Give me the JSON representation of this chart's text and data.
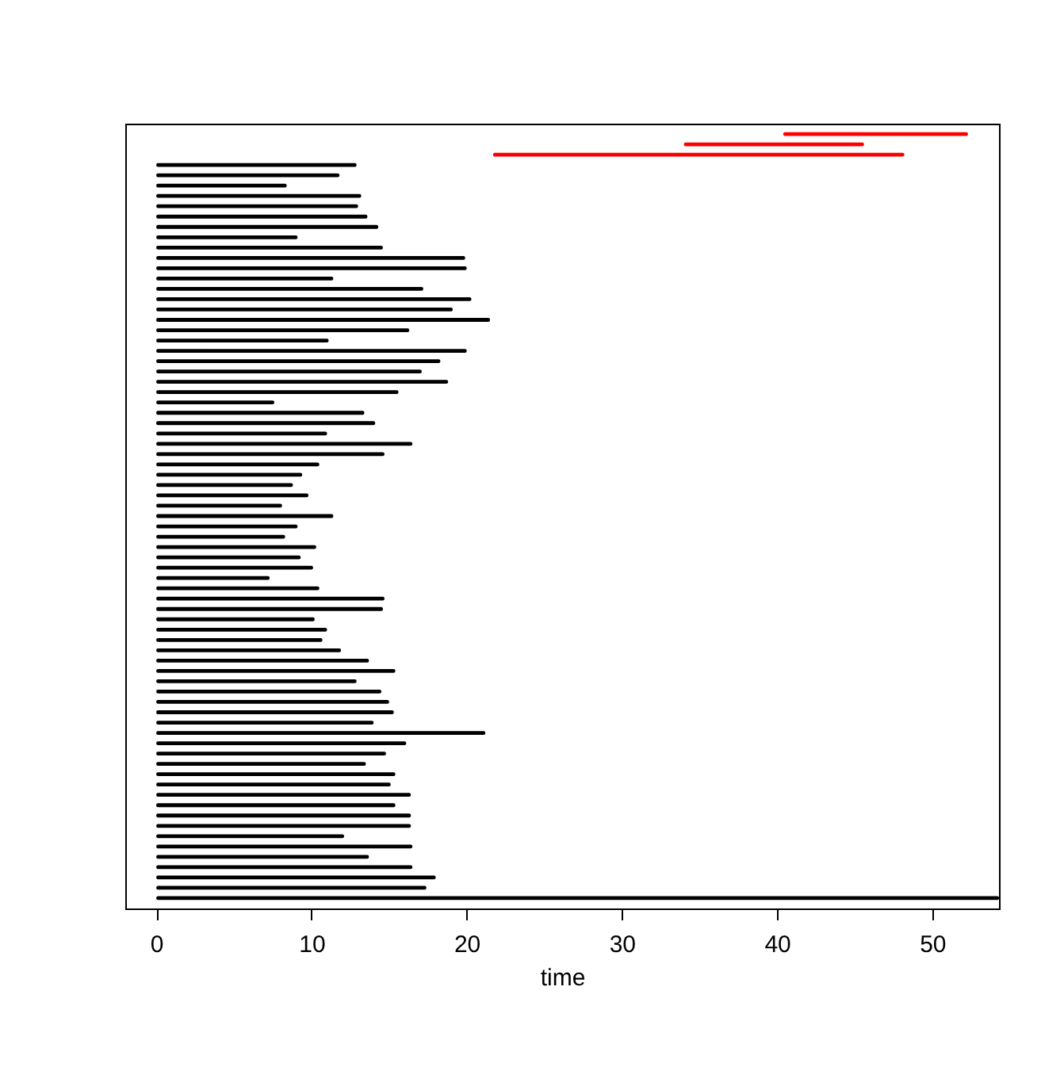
{
  "chart_data": {
    "type": "bar",
    "orientation": "horizontal",
    "xlabel": "time",
    "categories": [
      null,
      null,
      null,
      null,
      null,
      null,
      null,
      null,
      null,
      null,
      null,
      null,
      null,
      null,
      null,
      null,
      null,
      null,
      null,
      null,
      null,
      null,
      null,
      null,
      null,
      null,
      null,
      null,
      null,
      null,
      null,
      null,
      null,
      null,
      null,
      null,
      null,
      null,
      null,
      null,
      null,
      null,
      null,
      null,
      null,
      null,
      null,
      null,
      null,
      null,
      null,
      null,
      null,
      null,
      null,
      null,
      null,
      null,
      null,
      null,
      null,
      null,
      null,
      null,
      null,
      null,
      null,
      null,
      null,
      null,
      null,
      null,
      null,
      null,
      null
    ],
    "base": [
      40.4,
      34.0,
      21.7,
      0,
      0,
      0,
      0,
      0,
      0,
      0,
      0,
      0,
      0,
      0,
      0,
      0,
      0,
      0,
      0,
      0,
      0,
      0,
      0,
      0,
      0,
      0,
      0,
      0,
      0,
      0,
      0,
      0,
      0,
      0,
      0,
      0,
      0,
      0,
      0,
      0,
      0,
      0,
      0,
      0,
      0,
      0,
      0,
      0,
      0,
      0,
      0,
      0,
      0,
      0,
      0,
      0,
      0,
      0,
      0,
      0,
      0,
      0,
      0,
      0,
      0,
      0,
      0,
      0,
      0,
      0,
      0,
      0,
      0,
      0,
      0
    ],
    "values": [
      11.9,
      11.6,
      26.5,
      12.9,
      11.8,
      8.4,
      13.2,
      13.0,
      13.6,
      14.3,
      9.1,
      14.6,
      19.9,
      20.0,
      11.4,
      17.2,
      20.3,
      19.1,
      21.5,
      16.3,
      11.1,
      20.0,
      18.3,
      17.1,
      18.8,
      15.6,
      7.6,
      13.4,
      14.1,
      11.0,
      16.5,
      14.7,
      10.5,
      9.4,
      8.8,
      9.8,
      8.1,
      11.4,
      9.1,
      8.3,
      10.3,
      9.3,
      10.1,
      7.3,
      10.5,
      14.7,
      14.6,
      10.2,
      11.0,
      10.7,
      11.9,
      13.7,
      15.4,
      12.9,
      14.5,
      15.0,
      15.3,
      14.0,
      21.2,
      16.1,
      14.8,
      13.5,
      15.4,
      15.1,
      16.4,
      15.4,
      16.4,
      16.4,
      12.1,
      16.5,
      13.7,
      16.5,
      18.0,
      17.4,
      54.3
    ],
    "colors": [
      "#ff0000",
      "#ff0000",
      "#ff0000",
      "#000000",
      "#000000",
      "#000000",
      "#000000",
      "#000000",
      "#000000",
      "#000000",
      "#000000",
      "#000000",
      "#000000",
      "#000000",
      "#000000",
      "#000000",
      "#000000",
      "#000000",
      "#000000",
      "#000000",
      "#000000",
      "#000000",
      "#000000",
      "#000000",
      "#000000",
      "#000000",
      "#000000",
      "#000000",
      "#000000",
      "#000000",
      "#000000",
      "#000000",
      "#000000",
      "#000000",
      "#000000",
      "#000000",
      "#000000",
      "#000000",
      "#000000",
      "#000000",
      "#000000",
      "#000000",
      "#000000",
      "#000000",
      "#000000",
      "#000000",
      "#000000",
      "#000000",
      "#000000",
      "#000000",
      "#000000",
      "#000000",
      "#000000",
      "#000000",
      "#000000",
      "#000000",
      "#000000",
      "#000000",
      "#000000",
      "#000000",
      "#000000",
      "#000000",
      "#000000",
      "#000000",
      "#000000",
      "#000000",
      "#000000",
      "#000000",
      "#000000",
      "#000000",
      "#000000",
      "#000000",
      "#000000",
      "#000000",
      "#000000"
    ],
    "xlim": [
      -2.0,
      54.3
    ],
    "xticks": [
      0,
      10,
      20,
      30,
      40,
      50
    ],
    "tick_labels": "x",
    "grid": false
  }
}
